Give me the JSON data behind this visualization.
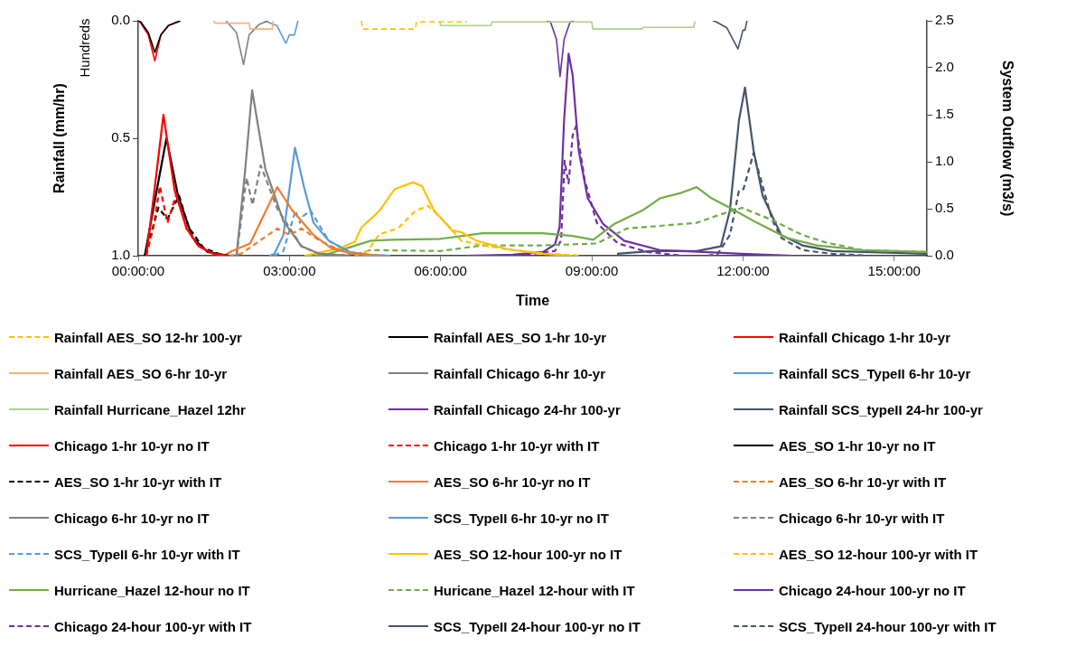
{
  "chart_data": {
    "type": "line",
    "xlabel": "Time",
    "ylabel": "Rainfall (mm/hr)",
    "y2label": "System Outflow (m3/s)",
    "annotations": [
      "Hundreds"
    ],
    "xlim": [
      0,
      15.65
    ],
    "xticks": [
      {
        "value": 0,
        "label": "00:00:00"
      },
      {
        "value": 3,
        "label": "03:00:00"
      },
      {
        "value": 6,
        "label": "06:00:00"
      },
      {
        "value": 9,
        "label": "09:00:00"
      },
      {
        "value": 12,
        "label": "12:00:00"
      },
      {
        "value": 15,
        "label": "15:00:00"
      }
    ],
    "ylim": [
      1,
      0
    ],
    "yticks": [
      {
        "value": 0,
        "label": "0.0"
      },
      {
        "value": 0.5,
        "label": "0.5"
      },
      {
        "value": 1,
        "label": "1.0"
      }
    ],
    "y2lim": [
      0,
      2.5
    ],
    "y2ticks": [
      {
        "value": 0,
        "label": "0.0"
      },
      {
        "value": 0.5,
        "label": "0.5"
      },
      {
        "value": 1,
        "label": "1.0"
      },
      {
        "value": 1.5,
        "label": "1.5"
      },
      {
        "value": 2,
        "label": "2.0"
      },
      {
        "value": 2.5,
        "label": "2.5"
      }
    ],
    "grid": false,
    "legend": "bottom",
    "marker": "none",
    "series": [
      {
        "name": "Rainfall AES_SO 12-hr 100-yr",
        "color": "#ffc000",
        "line_style": "dashed",
        "x": [
          4.43,
          4.45,
          5.5,
          5.52,
          6.5,
          6.52
        ],
        "values": [
          0,
          0.035,
          0.035,
          0.005,
          0.005,
          0
        ]
      },
      {
        "name": "Rainfall AES_SO 1-hr 10-yr",
        "color": "#000000",
        "line_style": "solid",
        "x": [
          0,
          0.05,
          0.2,
          0.33,
          0.45,
          0.6,
          0.84
        ],
        "values": [
          0,
          0.005,
          0.05,
          0.135,
          0.06,
          0.02,
          0
        ]
      },
      {
        "name": "Rainfall Chicago 1-hr 10-yr",
        "color": "#ff0000",
        "line_style": "solid",
        "x": [
          0.02,
          0.05,
          0.2,
          0.33,
          0.45,
          0.6,
          0.8
        ],
        "values": [
          0,
          0.01,
          0.06,
          0.17,
          0.06,
          0.02,
          0.003
        ]
      },
      {
        "name": "Rainfall AES_SO 6-hr 10-yr",
        "color": "#f4b183",
        "line_style": "solid",
        "x": [
          1.5,
          1.52,
          2.2,
          2.22,
          2.66,
          2.68
        ],
        "values": [
          0,
          0.01,
          0.01,
          0.035,
          0.035,
          0
        ]
      },
      {
        "name": "Rainfall Chicago 6-hr 10-yr",
        "color": "#808080",
        "line_style": "solid",
        "x": [
          1.74,
          1.95,
          2.09,
          2.2,
          2.4,
          2.58
        ],
        "values": [
          0,
          0.05,
          0.186,
          0.06,
          0.015,
          0
        ]
      },
      {
        "name": "Rainfall SCS_TypeII 6-hr 10-yr",
        "color": "#5b9bd5",
        "line_style": "solid",
        "x": [
          2.5,
          2.75,
          2.93,
          3.0,
          3.1,
          3.17
        ],
        "values": [
          0,
          0.02,
          0.096,
          0.06,
          0.06,
          0
        ]
      },
      {
        "name": "Rainfall Hurricane_Hazel 12hr",
        "color": "#a9d18e",
        "line_style": "solid",
        "x": [
          5.98,
          6.0,
          7.0,
          7.02,
          9.0,
          9.02,
          10.0,
          10.02,
          11.02,
          11.05
        ],
        "values": [
          0,
          0.02,
          0.02,
          0.005,
          0.005,
          0.035,
          0.035,
          0.028,
          0.028,
          0.003
        ]
      },
      {
        "name": "Rainfall Chicago 24-hr 100-yr",
        "color": "#7030a0",
        "line_style": "solid",
        "x": [
          8.1,
          8.18,
          8.3,
          8.37,
          8.45,
          8.57,
          8.65
        ],
        "values": [
          0,
          0.005,
          0.08,
          0.237,
          0.08,
          0.005,
          0
        ]
      },
      {
        "name": "Rainfall SCS_typeII 24-hr 100-yr",
        "color": "#44546a",
        "line_style": "solid",
        "x": [
          11.4,
          11.47,
          11.68,
          11.9,
          12.0,
          12.04,
          12.08
        ],
        "values": [
          0,
          0.005,
          0.03,
          0.12,
          0.04,
          0.04,
          0
        ]
      },
      {
        "name": "Chicago 1-hr 10-yr no IT",
        "color": "#ff0000",
        "line_style": "solid",
        "axis": "y2",
        "x": [
          0.16,
          0.3,
          0.5,
          0.72,
          0.96,
          1.2,
          1.5,
          1.8
        ],
        "values": [
          0,
          0.6,
          1.5,
          0.7,
          0.29,
          0.1,
          0.02,
          0
        ]
      },
      {
        "name": "Chicago 1-hr 10-yr with IT",
        "color": "#ff0000",
        "line_style": "dashed",
        "axis": "y2",
        "x": [
          0.16,
          0.3,
          0.43,
          0.58,
          0.76,
          0.96,
          1.2,
          1.5,
          1.8
        ],
        "values": [
          0,
          0.3,
          0.74,
          0.35,
          0.66,
          0.29,
          0.1,
          0.02,
          0
        ]
      },
      {
        "name": "AES_SO 1-hr 10-yr no IT",
        "color": "#000000",
        "line_style": "solid",
        "axis": "y2",
        "x": [
          0.13,
          0.3,
          0.56,
          0.79,
          1.08,
          1.38,
          1.8
        ],
        "values": [
          0,
          0.5,
          1.25,
          0.64,
          0.19,
          0.04,
          0
        ]
      },
      {
        "name": "AES_SO 1-hr 10-yr with IT",
        "color": "#000000",
        "line_style": "dashed",
        "axis": "y2",
        "x": [
          0.13,
          0.4,
          0.58,
          0.81,
          1.0,
          1.3,
          1.7
        ],
        "values": [
          0,
          0.51,
          0.39,
          0.64,
          0.3,
          0.08,
          0
        ]
      },
      {
        "name": "AES_SO 6-hr 10-yr no IT",
        "color": "#ed7d31",
        "line_style": "solid",
        "axis": "y2",
        "x": [
          1.7,
          1.86,
          2.22,
          2.76,
          3.06,
          3.48,
          3.83,
          4.25,
          4.8
        ],
        "values": [
          0,
          0.05,
          0.13,
          0.73,
          0.48,
          0.22,
          0.08,
          0.02,
          0
        ]
      },
      {
        "name": "AES_SO 6-hr 10-yr with IT",
        "color": "#ed7d31",
        "line_style": "dashed",
        "axis": "y2",
        "x": [
          1.8,
          2.04,
          2.28,
          2.76,
          3.0,
          3.24,
          3.6,
          4.09,
          4.8
        ],
        "values": [
          0,
          0.02,
          0.11,
          0.29,
          0.22,
          0.29,
          0.16,
          0.04,
          0
        ]
      },
      {
        "name": "Chicago 6-hr 10-yr no IT",
        "color": "#808080",
        "line_style": "solid",
        "axis": "y2",
        "x": [
          1.95,
          2.12,
          2.26,
          2.52,
          2.88,
          3.24,
          3.6,
          4.2
        ],
        "values": [
          0,
          0.9,
          1.76,
          0.93,
          0.37,
          0.1,
          0.02,
          0
        ]
      },
      {
        "name": "SCS_TypeII 6-hr 10-yr no IT",
        "color": "#5b9bd5",
        "line_style": "solid",
        "axis": "y2",
        "x": [
          2.6,
          2.7,
          2.88,
          3.11,
          3.3,
          3.48,
          3.78,
          4.19,
          4.55,
          5.0
        ],
        "values": [
          0,
          0.02,
          0.22,
          1.15,
          0.71,
          0.35,
          0.16,
          0.04,
          0.01,
          0
        ]
      },
      {
        "name": "Chicago 6-hr 10-yr with IT",
        "color": "#808080",
        "line_style": "dashed",
        "axis": "y2",
        "x": [
          1.95,
          2.15,
          2.27,
          2.43,
          2.76,
          3.24,
          3.6,
          4.2
        ],
        "values": [
          0,
          0.83,
          0.54,
          0.96,
          0.5,
          0.1,
          0.02,
          0
        ]
      },
      {
        "name": "SCS_TypeII 6-hr 10-yr with IT",
        "color": "#5b9bd5",
        "line_style": "dashed",
        "axis": "y2",
        "x": [
          2.7,
          2.88,
          3.12,
          3.21,
          3.27,
          3.42,
          3.78,
          4.19,
          4.55,
          5.0
        ],
        "values": [
          0,
          0.05,
          0.48,
          0.35,
          0.42,
          0.48,
          0.16,
          0.04,
          0.01,
          0
        ]
      },
      {
        "name": "AES_SO 12-hour 100-yr no IT",
        "color": "#ffc000",
        "line_style": "solid",
        "axis": "y2",
        "x": [
          3.3,
          3.5,
          4.0,
          4.3,
          4.43,
          4.79,
          5.09,
          5.45,
          5.63,
          5.87,
          6.23,
          6.41,
          6.71,
          7.31,
          8.03,
          8.62
        ],
        "values": [
          0,
          0.02,
          0.08,
          0.15,
          0.3,
          0.48,
          0.71,
          0.78,
          0.74,
          0.48,
          0.27,
          0.25,
          0.16,
          0.07,
          0.02,
          0
        ]
      },
      {
        "name": "AES_SO 12-hour 100-yr with IT",
        "color": "#ffc000",
        "line_style": "dashed",
        "axis": "y2",
        "x": [
          4.3,
          4.55,
          4.79,
          5.15,
          5.51,
          5.75,
          6.05,
          6.41,
          6.83,
          7.43,
          8.15,
          8.8
        ],
        "values": [
          0,
          0.05,
          0.23,
          0.29,
          0.48,
          0.53,
          0.38,
          0.16,
          0.11,
          0.06,
          0.02,
          0
        ]
      },
      {
        "name": "Hurricane_Hazel 12-hour no IT",
        "color": "#70ad47",
        "line_style": "solid",
        "axis": "y2",
        "x": [
          3.5,
          3.78,
          4.62,
          5.03,
          6.0,
          6.83,
          8.03,
          8.62,
          9.03,
          9.45,
          10.0,
          10.35,
          10.78,
          11.08,
          11.38,
          11.74,
          12.28,
          12.87,
          13.47,
          14.37,
          15.65
        ],
        "values": [
          0,
          0.02,
          0.16,
          0.17,
          0.18,
          0.24,
          0.24,
          0.21,
          0.17,
          0.34,
          0.48,
          0.61,
          0.67,
          0.73,
          0.61,
          0.51,
          0.35,
          0.19,
          0.11,
          0.06,
          0.04
        ]
      },
      {
        "name": "Huricane_Hazel 12-hour with IT",
        "color": "#70ad47",
        "line_style": "dashed",
        "axis": "y2",
        "x": [
          3.8,
          4.07,
          4.43,
          4.61,
          6.0,
          6.83,
          8.03,
          9.1,
          9.7,
          10.18,
          11.08,
          11.5,
          11.98,
          12.58,
          13.18,
          13.65,
          14.37,
          15.65
        ],
        "values": [
          0,
          0.01,
          0.03,
          0.06,
          0.05,
          0.11,
          0.11,
          0.13,
          0.29,
          0.31,
          0.35,
          0.43,
          0.51,
          0.38,
          0.22,
          0.14,
          0.06,
          0.04
        ]
      },
      {
        "name": "Chicago 24-hour 100-yr no IT",
        "color": "#7030a0",
        "line_style": "solid",
        "axis": "y2",
        "x": [
          6.5,
          7.43,
          8.03,
          8.27,
          8.36,
          8.45,
          8.54,
          8.62,
          8.74,
          8.92,
          9.22,
          9.64,
          10.35,
          10.78,
          11.98,
          13.0
        ],
        "values": [
          0,
          0.01,
          0.04,
          0.12,
          0.3,
          1.44,
          2.15,
          1.92,
          1.12,
          0.61,
          0.34,
          0.16,
          0.06,
          0.05,
          0.02,
          0
        ]
      },
      {
        "name": "Chicago 24-hour 100-yr with IT",
        "color": "#7030a0",
        "line_style": "dashed",
        "axis": "y2",
        "x": [
          7.5,
          8.27,
          8.39,
          8.46,
          8.54,
          8.62,
          8.69,
          8.86,
          9.1,
          9.52,
          10.11,
          10.8
        ],
        "values": [
          0,
          0.05,
          0.16,
          1.01,
          0.77,
          1.28,
          1.38,
          0.8,
          0.35,
          0.13,
          0.04,
          0
        ]
      },
      {
        "name": "SCS_TypeII 24-hour 100-yr no IT",
        "color": "#44546a",
        "line_style": "solid",
        "axis": "y2",
        "x": [
          9.5,
          10.18,
          11.08,
          11.56,
          11.74,
          11.92,
          12.04,
          12.21,
          12.39,
          12.58,
          12.76,
          13.18,
          13.77,
          15.65
        ],
        "values": [
          0.02,
          0.05,
          0.05,
          0.1,
          0.48,
          1.44,
          1.79,
          1.12,
          0.64,
          0.42,
          0.22,
          0.11,
          0.05,
          0.02
        ]
      },
      {
        "name": "SCS_TypeII 24-hour 100-yr with IT",
        "color": "#44546a",
        "line_style": "dashed",
        "axis": "y2",
        "x": [
          11.3,
          11.5,
          11.74,
          11.92,
          12.01,
          12.21,
          12.39,
          12.58,
          12.76,
          13.18,
          13.77,
          14.5
        ],
        "values": [
          0,
          0.02,
          0.22,
          0.69,
          0.71,
          1.09,
          0.74,
          0.38,
          0.19,
          0.06,
          0.02,
          0
        ]
      }
    ]
  }
}
